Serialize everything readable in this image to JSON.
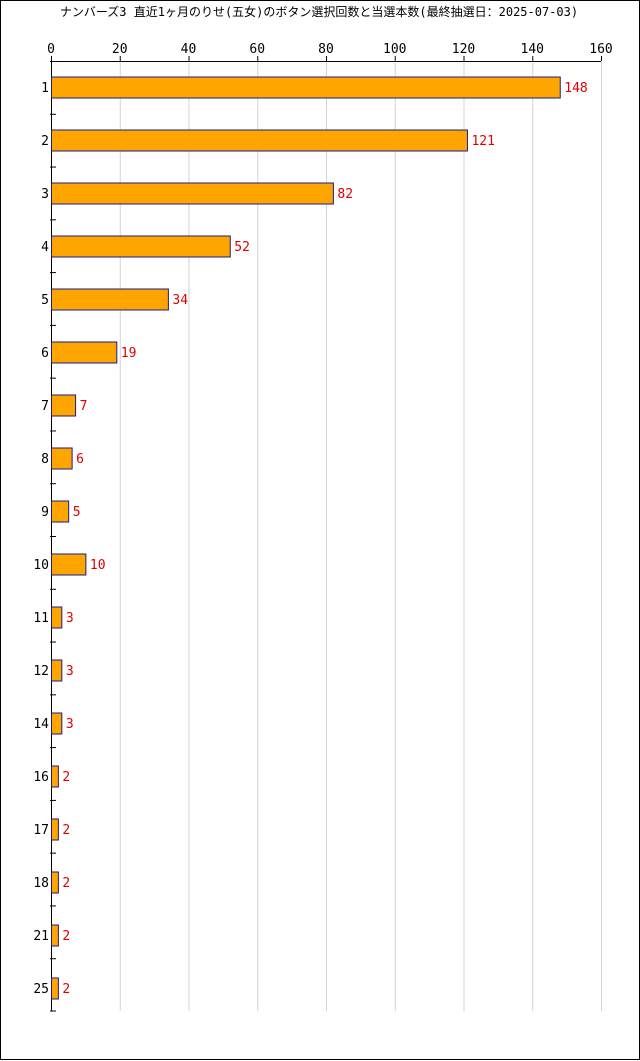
{
  "chart_data": {
    "type": "bar",
    "orientation": "horizontal",
    "title": "ナンバーズ3 直近1ヶ月のりせ(五女)のボタン選択回数と当選本数(最終抽選日：2025-07-03)",
    "categories": [
      "1",
      "2",
      "3",
      "4",
      "5",
      "6",
      "7",
      "8",
      "9",
      "10",
      "11",
      "12",
      "14",
      "16",
      "17",
      "18",
      "21",
      "25"
    ],
    "values": [
      148,
      121,
      82,
      52,
      34,
      19,
      7,
      6,
      5,
      10,
      3,
      3,
      3,
      2,
      2,
      2,
      2,
      2
    ],
    "xlim": [
      0,
      160
    ],
    "xticks": [
      0,
      20,
      40,
      60,
      80,
      100,
      120,
      140,
      160
    ],
    "xlabel": "",
    "ylabel": "",
    "grid": true,
    "axis_position": "top",
    "colors": {
      "bar_fill": "#ffa500",
      "bar_stroke": "#1a1a8c",
      "data_label": "#e00000",
      "grid": "#d3d3d3",
      "axis": "#000000"
    }
  }
}
